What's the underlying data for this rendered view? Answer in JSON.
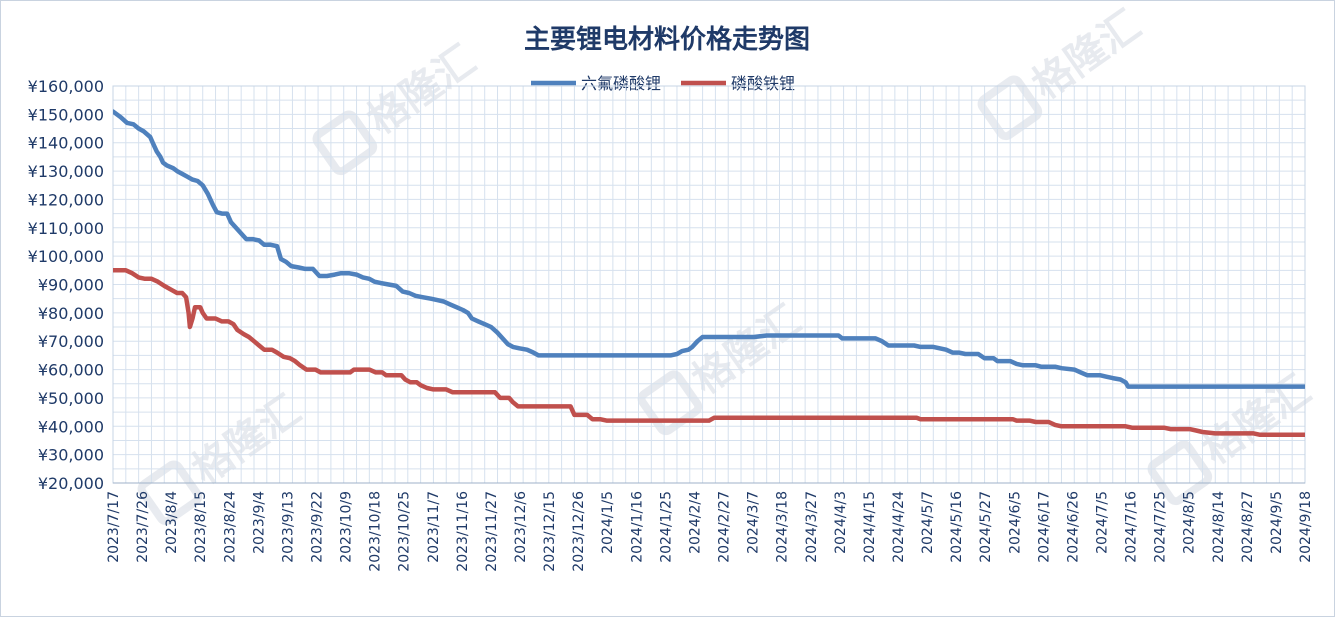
{
  "chart_data": {
    "type": "line",
    "title": "主要锂电材料价格走势图",
    "watermark": "格隆汇",
    "legend_position": "top-center",
    "grid": true,
    "ylim": [
      20000,
      160000
    ],
    "y_ticks": [
      "¥160,000",
      "¥150,000",
      "¥140,000",
      "¥130,000",
      "¥120,000",
      "¥110,000",
      "¥100,000",
      "¥90,000",
      "¥80,000",
      "¥70,000",
      "¥60,000",
      "¥50,000",
      "¥40,000",
      "¥30,000",
      "¥20,000"
    ],
    "y_tick_values": [
      160000,
      150000,
      140000,
      130000,
      120000,
      110000,
      100000,
      90000,
      80000,
      70000,
      60000,
      50000,
      40000,
      30000,
      20000
    ],
    "x_ticks": [
      "2023/7/17",
      "2023/7/26",
      "2023/8/4",
      "2023/8/15",
      "2023/8/24",
      "2023/9/4",
      "2023/9/13",
      "2023/9/22",
      "2023/10/9",
      "2023/10/18",
      "2023/10/25",
      "2023/11/7",
      "2023/11/16",
      "2023/11/27",
      "2023/12/6",
      "2023/12/15",
      "2023/12/26",
      "2024/1/5",
      "2024/1/16",
      "2024/1/25",
      "2024/2/4",
      "2024/2/27",
      "2024/3/7",
      "2024/3/18",
      "2024/3/27",
      "2024/4/3",
      "2024/4/15",
      "2024/4/24",
      "2024/5/7",
      "2024/5/16",
      "2024/5/27",
      "2024/6/5",
      "2024/6/17",
      "2024/6/26",
      "2024/7/5",
      "2024/7/16",
      "2024/7/25",
      "2024/8/5",
      "2024/8/14",
      "2024/8/27",
      "2024/9/5",
      "2024/9/18"
    ],
    "series": [
      {
        "name": "六氟磷酸锂",
        "color": "#4f81bd",
        "points": [
          [
            0,
            151000
          ],
          [
            0.6,
            149000
          ],
          [
            1.1,
            147000
          ],
          [
            1.6,
            146500
          ],
          [
            2.0,
            145000
          ],
          [
            2.4,
            144000
          ],
          [
            2.9,
            142000
          ],
          [
            3.1,
            140000
          ],
          [
            3.4,
            137000
          ],
          [
            3.7,
            135000
          ],
          [
            3.9,
            133000
          ],
          [
            4.2,
            132000
          ],
          [
            4.7,
            131000
          ],
          [
            5.0,
            130000
          ],
          [
            5.4,
            129000
          ],
          [
            5.8,
            128000
          ],
          [
            6.2,
            127000
          ],
          [
            6.6,
            126500
          ],
          [
            7.0,
            125000
          ],
          [
            7.4,
            122000
          ],
          [
            7.8,
            118000
          ],
          [
            8.1,
            115500
          ],
          [
            8.5,
            115000
          ],
          [
            8.9,
            115000
          ],
          [
            9.2,
            112000
          ],
          [
            9.6,
            110000
          ],
          [
            10.0,
            108000
          ],
          [
            10.4,
            106000
          ],
          [
            10.9,
            106000
          ],
          [
            11.4,
            105500
          ],
          [
            11.8,
            104000
          ],
          [
            12.3,
            104000
          ],
          [
            12.8,
            103500
          ],
          [
            13.1,
            99000
          ],
          [
            13.5,
            98000
          ],
          [
            13.9,
            96500
          ],
          [
            14.5,
            96000
          ],
          [
            15.0,
            95500
          ],
          [
            15.6,
            95500
          ],
          [
            16.1,
            93000
          ],
          [
            16.7,
            93000
          ],
          [
            17.3,
            93500
          ],
          [
            17.8,
            94000
          ],
          [
            18.4,
            94000
          ],
          [
            19.0,
            93500
          ],
          [
            19.5,
            92500
          ],
          [
            20.0,
            92000
          ],
          [
            20.4,
            91000
          ],
          [
            20.9,
            90500
          ],
          [
            21.5,
            90000
          ],
          [
            22.1,
            89500
          ],
          [
            22.6,
            87500
          ],
          [
            23.1,
            87000
          ],
          [
            23.6,
            86000
          ],
          [
            24.2,
            85500
          ],
          [
            24.8,
            85000
          ],
          [
            25.3,
            84500
          ],
          [
            25.8,
            84000
          ],
          [
            26.3,
            83000
          ],
          [
            26.8,
            82000
          ],
          [
            27.3,
            81000
          ],
          [
            27.7,
            80000
          ],
          [
            28.0,
            78000
          ],
          [
            28.5,
            77000
          ],
          [
            29.0,
            76000
          ],
          [
            29.5,
            75000
          ],
          [
            30.0,
            73000
          ],
          [
            30.4,
            71000
          ],
          [
            30.8,
            69000
          ],
          [
            31.2,
            68000
          ],
          [
            31.7,
            67500
          ],
          [
            32.3,
            67000
          ],
          [
            32.8,
            66000
          ],
          [
            33.2,
            65000
          ],
          [
            34.0,
            65000
          ],
          [
            36.0,
            65000
          ],
          [
            38.0,
            65000
          ],
          [
            40.0,
            65000
          ],
          [
            42.0,
            65000
          ],
          [
            43.5,
            65000
          ],
          [
            44.0,
            65500
          ],
          [
            44.4,
            66500
          ],
          [
            44.9,
            67000
          ],
          [
            45.2,
            68000
          ],
          [
            45.6,
            70000
          ],
          [
            46.0,
            71500
          ],
          [
            47.0,
            71500
          ],
          [
            48.0,
            71500
          ],
          [
            49.0,
            71500
          ],
          [
            50.0,
            71500
          ],
          [
            51.0,
            72000
          ],
          [
            53.0,
            72000
          ],
          [
            55.0,
            72000
          ],
          [
            56.6,
            72000
          ],
          [
            56.9,
            71000
          ],
          [
            58.0,
            71000
          ],
          [
            59.5,
            71000
          ],
          [
            60.0,
            70000
          ],
          [
            60.5,
            68500
          ],
          [
            61.5,
            68500
          ],
          [
            62.5,
            68500
          ],
          [
            63.0,
            68000
          ],
          [
            64.0,
            68000
          ],
          [
            64.5,
            67500
          ],
          [
            65.0,
            67000
          ],
          [
            65.5,
            66000
          ],
          [
            66.0,
            66000
          ],
          [
            66.5,
            65500
          ],
          [
            67.5,
            65500
          ],
          [
            68.0,
            64000
          ],
          [
            68.7,
            64000
          ],
          [
            69.0,
            63000
          ],
          [
            70.0,
            63000
          ],
          [
            70.5,
            62000
          ],
          [
            71.0,
            61500
          ],
          [
            72.0,
            61500
          ],
          [
            72.4,
            61000
          ],
          [
            73.5,
            61000
          ],
          [
            74.0,
            60500
          ],
          [
            75.0,
            60000
          ],
          [
            75.5,
            59000
          ],
          [
            76.0,
            58000
          ],
          [
            77.0,
            58000
          ],
          [
            77.5,
            57500
          ],
          [
            78.0,
            57000
          ],
          [
            78.6,
            56500
          ],
          [
            79.0,
            55500
          ],
          [
            79.2,
            54000
          ],
          [
            80.0,
            54000
          ],
          [
            85.0,
            54000
          ],
          [
            90.0,
            54000
          ],
          [
            93.0,
            54000
          ]
        ]
      },
      {
        "name": "磷酸铁锂",
        "color": "#c0504d",
        "points": [
          [
            0,
            95000
          ],
          [
            1.0,
            95000
          ],
          [
            1.5,
            94000
          ],
          [
            2.0,
            92500
          ],
          [
            2.5,
            92000
          ],
          [
            3.0,
            92000
          ],
          [
            3.5,
            91000
          ],
          [
            4.0,
            89500
          ],
          [
            4.6,
            88000
          ],
          [
            5.0,
            87000
          ],
          [
            5.4,
            87000
          ],
          [
            5.7,
            85500
          ],
          [
            5.9,
            80000
          ],
          [
            6.0,
            75000
          ],
          [
            6.2,
            78000
          ],
          [
            6.4,
            82000
          ],
          [
            6.8,
            82000
          ],
          [
            7.0,
            80000
          ],
          [
            7.3,
            78000
          ],
          [
            8.0,
            78000
          ],
          [
            8.5,
            77000
          ],
          [
            9.0,
            77000
          ],
          [
            9.4,
            76000
          ],
          [
            9.7,
            74000
          ],
          [
            10.2,
            72500
          ],
          [
            10.6,
            71500
          ],
          [
            11.0,
            70000
          ],
          [
            11.4,
            68500
          ],
          [
            11.8,
            67000
          ],
          [
            12.4,
            67000
          ],
          [
            12.8,
            66000
          ],
          [
            13.3,
            64500
          ],
          [
            13.8,
            64000
          ],
          [
            14.2,
            63000
          ],
          [
            14.6,
            61500
          ],
          [
            15.1,
            60000
          ],
          [
            15.8,
            60000
          ],
          [
            16.2,
            59000
          ],
          [
            17.0,
            59000
          ],
          [
            18.0,
            59000
          ],
          [
            18.5,
            59000
          ],
          [
            18.8,
            60000
          ],
          [
            20.0,
            60000
          ],
          [
            20.5,
            59000
          ],
          [
            21.0,
            59000
          ],
          [
            21.3,
            58000
          ],
          [
            22.5,
            58000
          ],
          [
            22.8,
            56500
          ],
          [
            23.2,
            55500
          ],
          [
            23.7,
            55500
          ],
          [
            24.0,
            54500
          ],
          [
            24.5,
            53500
          ],
          [
            25.0,
            53000
          ],
          [
            26.0,
            53000
          ],
          [
            26.5,
            52000
          ],
          [
            28.0,
            52000
          ],
          [
            29.8,
            52000
          ],
          [
            30.2,
            50000
          ],
          [
            30.9,
            50000
          ],
          [
            31.2,
            48500
          ],
          [
            31.6,
            47000
          ],
          [
            32.0,
            47000
          ],
          [
            34.0,
            47000
          ],
          [
            35.7,
            47000
          ],
          [
            36.0,
            44000
          ],
          [
            37.0,
            44000
          ],
          [
            37.4,
            42500
          ],
          [
            38.0,
            42500
          ],
          [
            38.5,
            42000
          ],
          [
            40.0,
            42000
          ],
          [
            42.0,
            42000
          ],
          [
            44.0,
            42000
          ],
          [
            46.0,
            42000
          ],
          [
            46.5,
            42000
          ],
          [
            46.9,
            43000
          ],
          [
            48.0,
            43000
          ],
          [
            50.0,
            43000
          ],
          [
            52.0,
            43000
          ],
          [
            54.0,
            43000
          ],
          [
            56.0,
            43000
          ],
          [
            58.0,
            43000
          ],
          [
            60.0,
            43000
          ],
          [
            62.7,
            43000
          ],
          [
            63.0,
            42500
          ],
          [
            65.0,
            42500
          ],
          [
            67.0,
            42500
          ],
          [
            69.0,
            42500
          ],
          [
            70.2,
            42500
          ],
          [
            70.5,
            42000
          ],
          [
            71.5,
            42000
          ],
          [
            72.0,
            41500
          ],
          [
            73.0,
            41500
          ],
          [
            73.5,
            40500
          ],
          [
            74.0,
            40000
          ],
          [
            76.0,
            40000
          ],
          [
            78.0,
            40000
          ],
          [
            79.0,
            40000
          ],
          [
            79.5,
            39500
          ],
          [
            81.0,
            39500
          ],
          [
            82.0,
            39500
          ],
          [
            82.5,
            39000
          ],
          [
            84.0,
            39000
          ],
          [
            84.5,
            38500
          ],
          [
            85.0,
            38000
          ],
          [
            86.0,
            37500
          ],
          [
            88.0,
            37500
          ],
          [
            89.0,
            37500
          ],
          [
            89.5,
            37000
          ],
          [
            91.0,
            37000
          ],
          [
            93.0,
            37000
          ]
        ]
      }
    ],
    "x_max": 93
  }
}
